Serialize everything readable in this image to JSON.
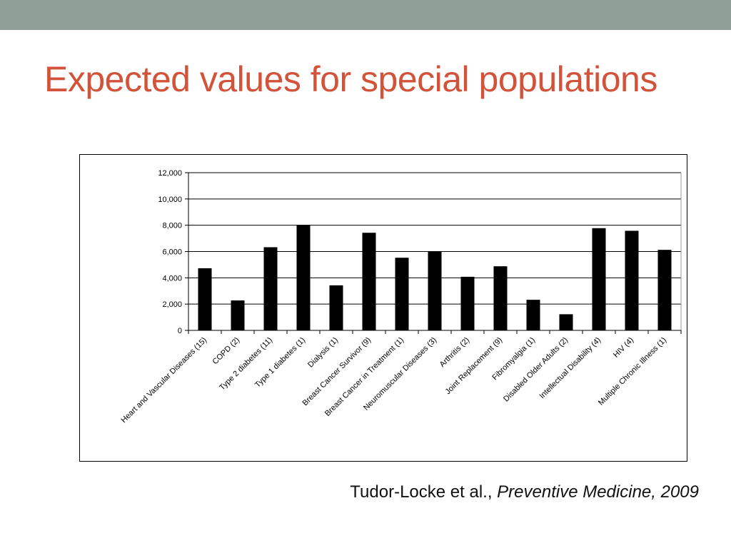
{
  "slide": {
    "title": "Expected values for special populations",
    "accent_color": "#d2533a",
    "bar_color": "#8f9f97"
  },
  "citation": {
    "authors": "Tudor-Locke et al., ",
    "journal": "Preventive Medicine, 2009"
  },
  "chart_data": {
    "type": "bar",
    "categories": [
      "Heart and Vascular Diseases (15)",
      "COPD (2)",
      "Type 2 diabetes (11)",
      "Type 1 diabetes (1)",
      "Dialysis (1)",
      "Breast Cancer Survivor (9)",
      "Breast Cancer in Treatment (1)",
      "Neuromuscular Diseases (3)",
      "Arthritis (2)",
      "Joint Replacement (9)",
      "Fibromyalgia (1)",
      "Disabled Older Adults (2)",
      "Intellectual  Disability (4)",
      "HIV (4)",
      "Multiple Chronic Illness (1)"
    ],
    "values": [
      4700,
      2250,
      6300,
      8000,
      3400,
      7400,
      5500,
      5950,
      4050,
      4850,
      2300,
      1200,
      7750,
      7550,
      6100
    ],
    "ylim": [
      0,
      12000
    ],
    "yticks": [
      {
        "value": 0,
        "label": "0"
      },
      {
        "value": 2000,
        "label": "2,000"
      },
      {
        "value": 4000,
        "label": "4,000"
      },
      {
        "value": 6000,
        "label": "6,000"
      },
      {
        "value": 8000,
        "label": "8,000"
      },
      {
        "value": 10000,
        "label": "10,000"
      },
      {
        "value": 12000,
        "label": "12,000"
      }
    ],
    "grid": true,
    "bar_color": "#000000"
  }
}
